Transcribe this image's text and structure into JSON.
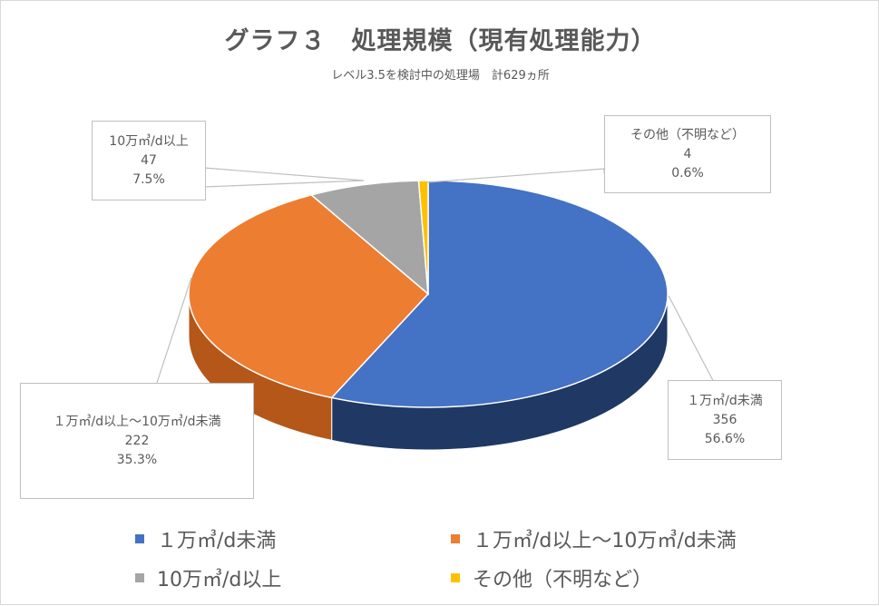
{
  "chart_data": {
    "type": "pie",
    "title": "グラフ３　処理規模（現有処理能力）",
    "subtitle": "レベル3.5を検討中の処理場　計629ヵ所",
    "total": 629,
    "slices": [
      {
        "label": "１万㎥/d未満",
        "value": 356,
        "percent": "56.6%",
        "color": "#4472c4",
        "side_color": "#1f3864"
      },
      {
        "label": "１万㎥/d以上～10万㎥/d未満",
        "value": 222,
        "percent": "35.3%",
        "color": "#ed7d31",
        "side_color": "#b45719"
      },
      {
        "label": "10万㎥/d以上",
        "value": 47,
        "percent": "7.5%",
        "color": "#a5a5a5",
        "side_color": "#7b7b7b"
      },
      {
        "label": "その他（不明など）",
        "value": 4,
        "percent": "0.6%",
        "color": "#ffc000",
        "side_color": "#bf9000"
      }
    ],
    "legend_position": "bottom"
  }
}
